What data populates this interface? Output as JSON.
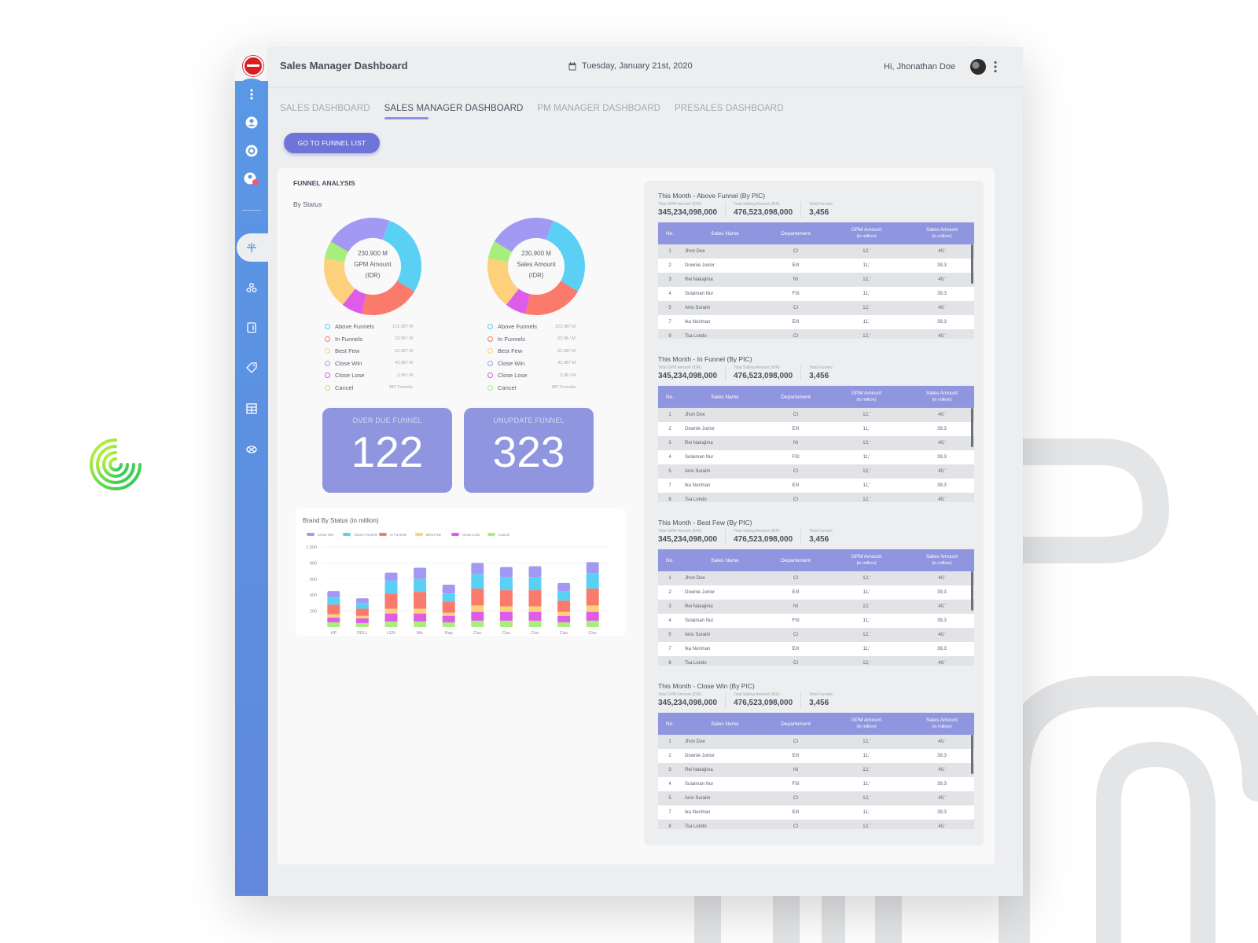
{
  "header": {
    "title": "Sales Manager Dashboard",
    "date": "Tuesday, January 21st,  2020",
    "greeting": "Hi, Jhonathan Doe"
  },
  "tabs": [
    {
      "label": "SALES DASHBOARD",
      "active": false
    },
    {
      "label": "SALES MANAGER DASHBOARD",
      "active": true
    },
    {
      "label": "PM MANAGER DASHBOARD",
      "active": false
    },
    {
      "label": "PRESALES DASHBOARD",
      "active": false
    }
  ],
  "sidebar": {
    "icons": [
      "more-vertical-icon",
      "user-icon",
      "settings-icon",
      "user-alert-icon",
      "funnel-icon",
      "share-icon",
      "document-icon",
      "tag-icon",
      "table-icon",
      "link-icon"
    ],
    "active": "funnel-icon"
  },
  "go_funnel_label": "GO TO FUNNEL LIST",
  "funnel": {
    "title": "FUNNEL ANALYSIS",
    "by_status": "By Status",
    "donut1": {
      "center_value": "230,900 M",
      "center_label1": "GPM Amount",
      "center_label2": "(IDR)",
      "legend": [
        {
          "name": "Above Funnels",
          "value": "123,987 M",
          "color": "#5ad0f5"
        },
        {
          "name": "In Funnels",
          "value": "23,98 / M",
          "color": "#fa7a6c"
        },
        {
          "name": "Best Few",
          "value": "22,987 M",
          "color": "#fdd07c"
        },
        {
          "name": "Close Win",
          "value": "43,987 M",
          "color": "#a29af2"
        },
        {
          "name": "Close Lose",
          "value": "3,98 / M",
          "color": "#df5ce8"
        },
        {
          "name": "Cancel",
          "value": "987 Funnels",
          "color": "#a7ee7c"
        }
      ]
    },
    "donut2": {
      "center_value": "230,900 M",
      "center_label1": "Sales Amount",
      "center_label2": "(IDR)",
      "legend": [
        {
          "name": "Above Funnels",
          "value": "123,987 M",
          "color": "#5ad0f5"
        },
        {
          "name": "In Funnels",
          "value": "23,98 / M",
          "color": "#fa7a6c"
        },
        {
          "name": "Best Few",
          "value": "22,987 M",
          "color": "#fdd07c"
        },
        {
          "name": "Close Win",
          "value": "43,987 M",
          "color": "#a29af2"
        },
        {
          "name": "Close Lose",
          "value": "3,98 / M",
          "color": "#df5ce8"
        },
        {
          "name": "Cancel",
          "value": "987 Funnels",
          "color": "#a7ee7c"
        }
      ]
    },
    "kpis": [
      {
        "label": "OVER DUE FUNNEL",
        "value": "122"
      },
      {
        "label": "UNUPDATE FUNNEL",
        "value": "323"
      }
    ]
  },
  "chart_data": {
    "type": "bar",
    "stacked": true,
    "title": "Brand By Status (in million)",
    "categories": [
      "HP",
      "DELL",
      "LEN",
      "Mic",
      "Rap",
      "Cisc",
      "Cisc",
      "Cisc",
      "Cisc",
      "Cisc"
    ],
    "ylim": [
      0,
      1000
    ],
    "yticks": [
      200,
      400,
      600,
      800,
      "1,000"
    ],
    "legend_position": "top-left",
    "series": [
      {
        "name": "Close Win",
        "color": "#a29af2",
        "values": [
          80,
          60,
          100,
          140,
          110,
          140,
          130,
          140,
          100,
          140
        ]
      },
      {
        "name": "Above Funnels",
        "color": "#5ad0f5",
        "values": [
          90,
          70,
          160,
          160,
          100,
          180,
          160,
          160,
          120,
          190
        ]
      },
      {
        "name": "In Funnels",
        "color": "#fa7a6c",
        "values": [
          120,
          90,
          190,
          210,
          140,
          210,
          200,
          200,
          140,
          210
        ]
      },
      {
        "name": "Best Few",
        "color": "#fdd07c",
        "values": [
          40,
          30,
          60,
          60,
          40,
          80,
          70,
          70,
          50,
          80
        ]
      },
      {
        "name": "Close Lose",
        "color": "#df5ce8",
        "values": [
          60,
          60,
          100,
          100,
          80,
          110,
          110,
          110,
          80,
          110
        ]
      },
      {
        "name": "Cancel",
        "color": "#a7ee7c",
        "values": [
          60,
          50,
          70,
          70,
          60,
          80,
          80,
          80,
          60,
          80
        ]
      }
    ]
  },
  "table_headers": [
    "No.",
    "Sales Name",
    "Departement",
    "GPM Amount",
    "(in million)",
    "Sales Amount",
    "(in million)"
  ],
  "sections": [
    {
      "title": "This Month - Above Funnel (By PIC)",
      "stats": [
        {
          "label": "Total GPM Amount (IDR)",
          "value": "345,234,098,000"
        },
        {
          "label": "Total Selling Amount (IDR)",
          "value": "476,523,098,000"
        },
        {
          "label": "Total Funnels",
          "value": "3,456"
        }
      ],
      "rows": [
        [
          "1",
          "Jhon Doe",
          "CI",
          "12,'",
          "40,'"
        ],
        [
          "2",
          "Downie Junior",
          "E/II",
          "11,'",
          "39,3"
        ],
        [
          "3",
          "Rei Nakajima",
          "NI",
          "12,'",
          "40,'"
        ],
        [
          "4",
          "Sulaiman Nur",
          "FSI",
          "11,'",
          "39,3"
        ],
        [
          "5",
          "Anis Suraim",
          "CI",
          "12,'",
          "40,'"
        ],
        [
          "7",
          "Ika Nuriman",
          "E/II",
          "11,'",
          "39,3"
        ],
        [
          "8",
          "Tsa Londo",
          "CI",
          "12,'",
          "40,'"
        ]
      ]
    },
    {
      "title": "This Month - In Funnel (By PIC)",
      "stats": [
        {
          "label": "Total GPM Amount (IDR)",
          "value": "345,234,098,000"
        },
        {
          "label": "Total Selling Amount (IDR)",
          "value": "476,523,098,000"
        },
        {
          "label": "Total Funnels",
          "value": "3,456"
        }
      ],
      "rows": [
        [
          "1",
          "Jhon Doe",
          "CI",
          "12,'",
          "40,'"
        ],
        [
          "2",
          "Downie Junior",
          "E/II",
          "11,'",
          "39,3"
        ],
        [
          "3",
          "Rei Nakajima",
          "NI",
          "12,'",
          "40,'"
        ],
        [
          "4",
          "Sulaiman Nur",
          "FSI",
          "11,'",
          "39,3"
        ],
        [
          "5",
          "Anis Suraim",
          "CI",
          "12,'",
          "40,'"
        ],
        [
          "7",
          "Ika Nuriman",
          "E/II",
          "11,'",
          "39,3"
        ],
        [
          "8",
          "Tsa Londo",
          "CI",
          "12,'",
          "40,'"
        ]
      ]
    },
    {
      "title": "This Month - Best Few (By PIC)",
      "stats": [
        {
          "label": "Total GPM Amount (IDR)",
          "value": "345,234,098,000"
        },
        {
          "label": "Total Selling Amount (IDR)",
          "value": "476,523,098,000"
        },
        {
          "label": "Total Funnels",
          "value": "3,456"
        }
      ],
      "rows": [
        [
          "1",
          "Jhon Doe",
          "CI",
          "12,'",
          "40,'"
        ],
        [
          "2",
          "Downie Junior",
          "E/II",
          "11,'",
          "39,3"
        ],
        [
          "3",
          "Rei Nakajima",
          "NI",
          "12,'",
          "40,'"
        ],
        [
          "4",
          "Sulaiman Nur",
          "FSI",
          "11,'",
          "39,3"
        ],
        [
          "5",
          "Anis Suraim",
          "CI",
          "12,'",
          "40,'"
        ],
        [
          "7",
          "Ika Nuriman",
          "E/II",
          "11,'",
          "39,3"
        ],
        [
          "8",
          "Tsa Londo",
          "CI",
          "12,'",
          "40,'"
        ]
      ]
    },
    {
      "title": "This Month - Close Win (By PIC)",
      "stats": [
        {
          "label": "Total GPM Amount (IDR)",
          "value": "345,234,098,000"
        },
        {
          "label": "Total Selling Amount (IDR)",
          "value": "476,523,098,000"
        },
        {
          "label": "Total Funnels",
          "value": "3,456"
        }
      ],
      "rows": [
        [
          "1",
          "Jhon Doe",
          "CI",
          "12,'",
          "40,'"
        ],
        [
          "2",
          "Downie Junior",
          "E/II",
          "11,'",
          "39,3"
        ],
        [
          "3",
          "Rei Nakajima",
          "NI",
          "12,'",
          "40,'"
        ],
        [
          "4",
          "Sulaiman Nur",
          "FSI",
          "11,'",
          "39,3"
        ],
        [
          "5",
          "Anis Suraim",
          "CI",
          "12,'",
          "40,'"
        ],
        [
          "7",
          "Ika Nuriman",
          "E/II",
          "11,'",
          "39,3"
        ],
        [
          "8",
          "Tsa Londo",
          "CI",
          "12,'",
          "40,'"
        ]
      ]
    }
  ]
}
